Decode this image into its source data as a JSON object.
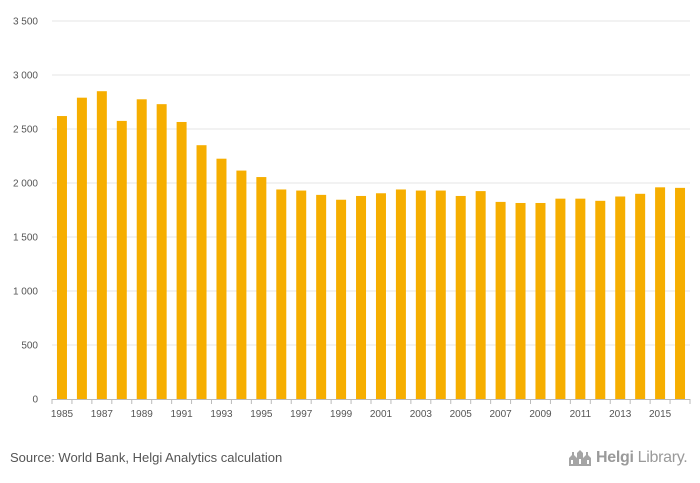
{
  "chart_data": {
    "type": "bar",
    "categories": [
      "1985",
      "1986",
      "1987",
      "1988",
      "1989",
      "1990",
      "1991",
      "1992",
      "1993",
      "1994",
      "1995",
      "1996",
      "1997",
      "1998",
      "1999",
      "2000",
      "2001",
      "2002",
      "2003",
      "2004",
      "2005",
      "2006",
      "2007",
      "2008",
      "2009",
      "2010",
      "2011",
      "2012",
      "2013",
      "2014",
      "2015",
      "2016"
    ],
    "x_tick_labels": [
      "1985",
      "1987",
      "1989",
      "1991",
      "1993",
      "1995",
      "1997",
      "1999",
      "2001",
      "2003",
      "2005",
      "2007",
      "2009",
      "2011",
      "2013",
      "2015"
    ],
    "values": [
      2620,
      2790,
      2850,
      2575,
      2775,
      2730,
      2565,
      2350,
      2225,
      2115,
      2055,
      1940,
      1930,
      1890,
      1845,
      1880,
      1905,
      1940,
      1930,
      1930,
      1880,
      1925,
      1825,
      1815,
      1815,
      1855,
      1855,
      1835,
      1875,
      1900,
      1960,
      1955
    ],
    "y_ticks": [
      0,
      500,
      1000,
      1500,
      2000,
      2500,
      3000,
      3500
    ],
    "y_tick_labels": [
      "0",
      "500",
      "1 000",
      "1 500",
      "2 000",
      "2 500",
      "3 000",
      "3 500"
    ],
    "ylim": [
      0,
      3500
    ],
    "grid": true,
    "bar_color": "#F6AE00",
    "title": "",
    "xlabel": "",
    "ylabel": ""
  },
  "footer": {
    "source": "Source: World Bank, Helgi Analytics calculation",
    "logo_main": "Helgi",
    "logo_sub": "Library."
  }
}
